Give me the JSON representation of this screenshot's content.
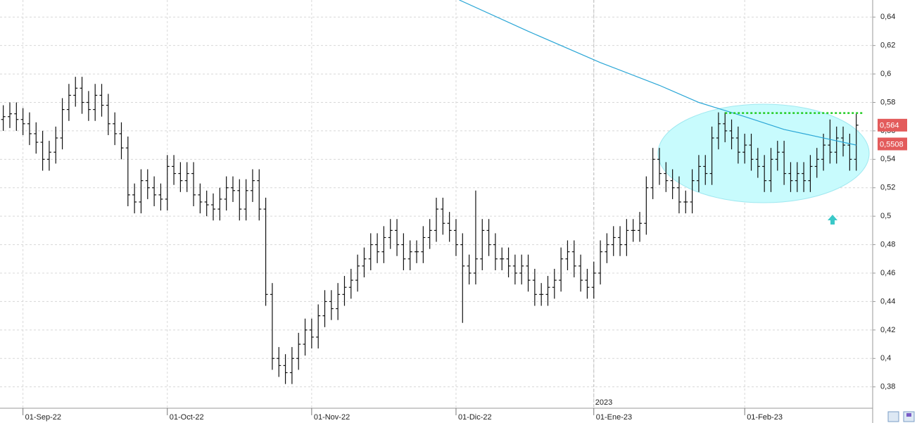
{
  "chart_data": {
    "type": "ohlc",
    "ylim": [
      0.365,
      0.652
    ],
    "yticks": [
      {
        "value": 0.38,
        "label": "0,38"
      },
      {
        "value": 0.4,
        "label": "0,4"
      },
      {
        "value": 0.42,
        "label": "0,42"
      },
      {
        "value": 0.44,
        "label": "0,44"
      },
      {
        "value": 0.46,
        "label": "0,46"
      },
      {
        "value": 0.48,
        "label": "0,48"
      },
      {
        "value": 0.5,
        "label": "0,5"
      },
      {
        "value": 0.52,
        "label": "0,52"
      },
      {
        "value": 0.54,
        "label": "0,54"
      },
      {
        "value": 0.56,
        "label": "0,56"
      },
      {
        "value": 0.58,
        "label": "0,58"
      },
      {
        "value": 0.6,
        "label": "0,6"
      },
      {
        "value": 0.62,
        "label": "0,62"
      },
      {
        "value": 0.64,
        "label": "0,64"
      }
    ],
    "xlim": [
      -0.5,
      132.5
    ],
    "xticks": [
      {
        "value": 3,
        "label": "01-Sep-22"
      },
      {
        "value": 25,
        "label": "01-Oct-22"
      },
      {
        "value": 47,
        "label": "01-Nov-22"
      },
      {
        "value": 69,
        "label": "01-Dic-22"
      },
      {
        "value": 90,
        "label": "01-Ene-23"
      },
      {
        "value": 113,
        "label": "01-Feb-23"
      }
    ],
    "year_marker": {
      "value": 90,
      "label": "2023"
    },
    "color": "#111111",
    "grid": true,
    "bars": [
      [
        0.568,
        0.578,
        0.56,
        0.57
      ],
      [
        0.57,
        0.58,
        0.562,
        0.572
      ],
      [
        0.572,
        0.58,
        0.56,
        0.568
      ],
      [
        0.568,
        0.576,
        0.557,
        0.565
      ],
      [
        0.565,
        0.573,
        0.55,
        0.558
      ],
      [
        0.558,
        0.566,
        0.544,
        0.552
      ],
      [
        0.552,
        0.56,
        0.532,
        0.54
      ],
      [
        0.54,
        0.553,
        0.532,
        0.545
      ],
      [
        0.545,
        0.563,
        0.537,
        0.555
      ],
      [
        0.555,
        0.583,
        0.547,
        0.575
      ],
      [
        0.575,
        0.593,
        0.567,
        0.585
      ],
      [
        0.585,
        0.598,
        0.577,
        0.59
      ],
      [
        0.59,
        0.598,
        0.572,
        0.58
      ],
      [
        0.58,
        0.588,
        0.567,
        0.575
      ],
      [
        0.575,
        0.593,
        0.567,
        0.585
      ],
      [
        0.585,
        0.593,
        0.57,
        0.578
      ],
      [
        0.578,
        0.586,
        0.557,
        0.565
      ],
      [
        0.565,
        0.573,
        0.55,
        0.558
      ],
      [
        0.558,
        0.566,
        0.54,
        0.548
      ],
      [
        0.548,
        0.556,
        0.507,
        0.515
      ],
      [
        0.515,
        0.523,
        0.502,
        0.51
      ],
      [
        0.51,
        0.533,
        0.502,
        0.525
      ],
      [
        0.525,
        0.533,
        0.512,
        0.52
      ],
      [
        0.52,
        0.528,
        0.507,
        0.515
      ],
      [
        0.515,
        0.523,
        0.504,
        0.512
      ],
      [
        0.512,
        0.543,
        0.504,
        0.535
      ],
      [
        0.535,
        0.543,
        0.522,
        0.53
      ],
      [
        0.53,
        0.538,
        0.517,
        0.525
      ],
      [
        0.525,
        0.538,
        0.517,
        0.53
      ],
      [
        0.53,
        0.538,
        0.507,
        0.515
      ],
      [
        0.515,
        0.523,
        0.502,
        0.51
      ],
      [
        0.51,
        0.518,
        0.5,
        0.508
      ],
      [
        0.508,
        0.516,
        0.497,
        0.505
      ],
      [
        0.505,
        0.52,
        0.497,
        0.512
      ],
      [
        0.512,
        0.528,
        0.504,
        0.52
      ],
      [
        0.52,
        0.528,
        0.51,
        0.518
      ],
      [
        0.518,
        0.526,
        0.497,
        0.505
      ],
      [
        0.505,
        0.526,
        0.497,
        0.518
      ],
      [
        0.518,
        0.533,
        0.51,
        0.525
      ],
      [
        0.525,
        0.533,
        0.497,
        0.505
      ],
      [
        0.505,
        0.513,
        0.437,
        0.445
      ],
      [
        0.445,
        0.453,
        0.392,
        0.4
      ],
      [
        0.4,
        0.408,
        0.387,
        0.395
      ],
      [
        0.395,
        0.403,
        0.382,
        0.39
      ],
      [
        0.39,
        0.408,
        0.382,
        0.4
      ],
      [
        0.4,
        0.418,
        0.392,
        0.41
      ],
      [
        0.41,
        0.428,
        0.402,
        0.42
      ],
      [
        0.42,
        0.428,
        0.407,
        0.415
      ],
      [
        0.415,
        0.438,
        0.407,
        0.43
      ],
      [
        0.43,
        0.448,
        0.422,
        0.44
      ],
      [
        0.44,
        0.448,
        0.427,
        0.435
      ],
      [
        0.435,
        0.453,
        0.427,
        0.445
      ],
      [
        0.445,
        0.458,
        0.437,
        0.45
      ],
      [
        0.45,
        0.463,
        0.442,
        0.455
      ],
      [
        0.455,
        0.473,
        0.447,
        0.465
      ],
      [
        0.465,
        0.478,
        0.457,
        0.47
      ],
      [
        0.47,
        0.488,
        0.462,
        0.48
      ],
      [
        0.48,
        0.488,
        0.467,
        0.475
      ],
      [
        0.475,
        0.493,
        0.467,
        0.485
      ],
      [
        0.485,
        0.498,
        0.477,
        0.49
      ],
      [
        0.49,
        0.498,
        0.472,
        0.48
      ],
      [
        0.48,
        0.488,
        0.462,
        0.47
      ],
      [
        0.47,
        0.483,
        0.462,
        0.475
      ],
      [
        0.475,
        0.483,
        0.467,
        0.475
      ],
      [
        0.475,
        0.493,
        0.467,
        0.485
      ],
      [
        0.485,
        0.498,
        0.477,
        0.49
      ],
      [
        0.49,
        0.513,
        0.482,
        0.505
      ],
      [
        0.505,
        0.513,
        0.487,
        0.495
      ],
      [
        0.495,
        0.503,
        0.482,
        0.49
      ],
      [
        0.49,
        0.498,
        0.472,
        0.48
      ],
      [
        0.48,
        0.488,
        0.425,
        0.465
      ],
      [
        0.465,
        0.473,
        0.452,
        0.46
      ],
      [
        0.46,
        0.518,
        0.452,
        0.47
      ],
      [
        0.47,
        0.498,
        0.462,
        0.49
      ],
      [
        0.49,
        0.498,
        0.472,
        0.48
      ],
      [
        0.48,
        0.488,
        0.462,
        0.47
      ],
      [
        0.47,
        0.478,
        0.462,
        0.47
      ],
      [
        0.47,
        0.478,
        0.457,
        0.465
      ],
      [
        0.465,
        0.473,
        0.452,
        0.46
      ],
      [
        0.46,
        0.473,
        0.452,
        0.465
      ],
      [
        0.465,
        0.473,
        0.447,
        0.455
      ],
      [
        0.455,
        0.463,
        0.437,
        0.445
      ],
      [
        0.445,
        0.453,
        0.437,
        0.445
      ],
      [
        0.445,
        0.458,
        0.437,
        0.45
      ],
      [
        0.45,
        0.463,
        0.442,
        0.455
      ],
      [
        0.455,
        0.478,
        0.447,
        0.47
      ],
      [
        0.47,
        0.483,
        0.462,
        0.475
      ],
      [
        0.475,
        0.483,
        0.457,
        0.465
      ],
      [
        0.465,
        0.473,
        0.447,
        0.455
      ],
      [
        0.455,
        0.463,
        0.442,
        0.45
      ],
      [
        0.45,
        0.468,
        0.442,
        0.46
      ],
      [
        0.46,
        0.483,
        0.452,
        0.475
      ],
      [
        0.475,
        0.488,
        0.467,
        0.48
      ],
      [
        0.48,
        0.493,
        0.472,
        0.485
      ],
      [
        0.485,
        0.493,
        0.472,
        0.48
      ],
      [
        0.48,
        0.498,
        0.472,
        0.49
      ],
      [
        0.49,
        0.498,
        0.482,
        0.49
      ],
      [
        0.49,
        0.503,
        0.482,
        0.495
      ],
      [
        0.495,
        0.528,
        0.487,
        0.52
      ],
      [
        0.52,
        0.548,
        0.512,
        0.54
      ],
      [
        0.54,
        0.548,
        0.522,
        0.53
      ],
      [
        0.53,
        0.538,
        0.517,
        0.525
      ],
      [
        0.525,
        0.533,
        0.512,
        0.52
      ],
      [
        0.52,
        0.528,
        0.502,
        0.51
      ],
      [
        0.51,
        0.518,
        0.502,
        0.51
      ],
      [
        0.51,
        0.533,
        0.502,
        0.525
      ],
      [
        0.525,
        0.543,
        0.517,
        0.535
      ],
      [
        0.535,
        0.543,
        0.522,
        0.53
      ],
      [
        0.53,
        0.563,
        0.522,
        0.555
      ],
      [
        0.555,
        0.573,
        0.547,
        0.565
      ],
      [
        0.565,
        0.573,
        0.552,
        0.56
      ],
      [
        0.56,
        0.568,
        0.547,
        0.555
      ],
      [
        0.555,
        0.563,
        0.537,
        0.545
      ],
      [
        0.545,
        0.558,
        0.537,
        0.55
      ],
      [
        0.55,
        0.558,
        0.532,
        0.54
      ],
      [
        0.54,
        0.548,
        0.527,
        0.535
      ],
      [
        0.535,
        0.543,
        0.517,
        0.525
      ],
      [
        0.525,
        0.548,
        0.517,
        0.54
      ],
      [
        0.54,
        0.553,
        0.532,
        0.545
      ],
      [
        0.545,
        0.553,
        0.522,
        0.53
      ],
      [
        0.53,
        0.538,
        0.517,
        0.525
      ],
      [
        0.525,
        0.538,
        0.517,
        0.53
      ],
      [
        0.53,
        0.538,
        0.517,
        0.525
      ],
      [
        0.525,
        0.543,
        0.517,
        0.535
      ],
      [
        0.535,
        0.548,
        0.527,
        0.54
      ],
      [
        0.54,
        0.558,
        0.532,
        0.55
      ],
      [
        0.55,
        0.568,
        0.537,
        0.545
      ],
      [
        0.545,
        0.563,
        0.537,
        0.555
      ],
      [
        0.555,
        0.563,
        0.542,
        0.55
      ],
      [
        0.55,
        0.558,
        0.532,
        0.54
      ],
      [
        0.54,
        0.572,
        0.532,
        0.564
      ]
    ],
    "moving_average": {
      "color": "#2aa6d6",
      "x": [
        69.5,
        80,
        91,
        100,
        106,
        113,
        119,
        125,
        130
      ],
      "values": [
        0.652,
        0.63,
        0.608,
        0.592,
        0.58,
        0.57,
        0.561,
        0.555,
        0.55
      ]
    },
    "resistance": {
      "color": "#22cc22",
      "value": 0.5725,
      "x": [
        110,
        131
      ]
    },
    "price_labels": [
      {
        "value": 0.564,
        "label": "0,564"
      },
      {
        "value": 0.5508,
        "label": "0,5508"
      }
    ]
  }
}
